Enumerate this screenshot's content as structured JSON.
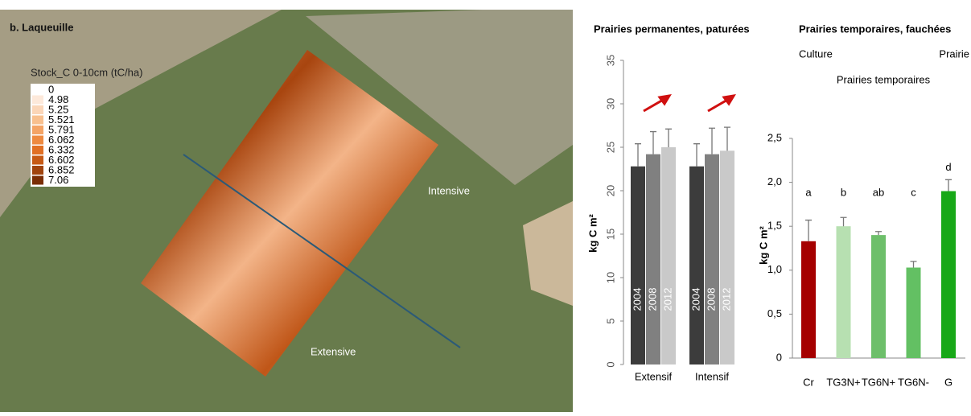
{
  "map": {
    "title": "b. Laqueuille",
    "legend_title": "Stock_C 0-10cm (tC/ha)",
    "legend_labels": [
      "0",
      "4.98",
      "5.25",
      "5.521",
      "5.791",
      "6.062",
      "6.332",
      "6.602",
      "6.852",
      "7.06"
    ],
    "legend_colors": [
      "#ffffff",
      "#fde9da",
      "#fbd6b8",
      "#f8c08f",
      "#f4a466",
      "#ee8a40",
      "#e17024",
      "#c65a15",
      "#a0440e",
      "#7a2e06"
    ],
    "labels": [
      "Intensive",
      "Extensive"
    ]
  },
  "chart_data": [
    {
      "type": "bar",
      "title": "Prairies permanentes, paturées",
      "ylabel": "kg C m²",
      "categories": [
        "Extensif",
        "Intensif"
      ],
      "series": [
        {
          "name": "2004",
          "color": "#3c3c3c",
          "values": [
            22.8,
            22.8
          ],
          "errors": [
            2.6,
            2.6
          ]
        },
        {
          "name": "2008",
          "color": "#808080",
          "values": [
            24.2,
            24.2
          ],
          "errors": [
            2.6,
            3.0
          ]
        },
        {
          "name": "2012",
          "color": "#c9c9c9",
          "values": [
            25.0,
            24.6
          ],
          "errors": [
            2.1,
            2.7
          ]
        }
      ],
      "ylim": [
        0,
        35
      ],
      "yticks": [
        0,
        5,
        10,
        15,
        20,
        25,
        30,
        35
      ]
    },
    {
      "type": "bar",
      "title": "Prairies temporaires, fauchées",
      "ylabel": "kg C m²",
      "annotations": [
        "Culture",
        "Prairie",
        "Prairies temporaires"
      ],
      "categories": [
        "Cr",
        "TG3N+",
        "TG6N+",
        "TG6N-",
        "G"
      ],
      "values": [
        1.33,
        1.5,
        1.4,
        1.03,
        1.9
      ],
      "errors": [
        0.24,
        0.1,
        0.04,
        0.07,
        0.13
      ],
      "letters": [
        "a",
        "b",
        "ab",
        "c",
        "d"
      ],
      "colors": [
        "#a50000",
        "#b7e0b1",
        "#6dbf6a",
        "#63c063",
        "#18a818"
      ],
      "ylim": [
        0,
        2.5
      ],
      "yticks": [
        0,
        {
          "value": 0.5,
          "label": "0,5"
        },
        {
          "value": 1,
          "label": "1,0"
        },
        {
          "value": 1.5,
          "label": "1,5"
        },
        {
          "value": 2,
          "label": "2,0"
        },
        {
          "value": 2.5,
          "label": "2,5"
        }
      ]
    }
  ]
}
